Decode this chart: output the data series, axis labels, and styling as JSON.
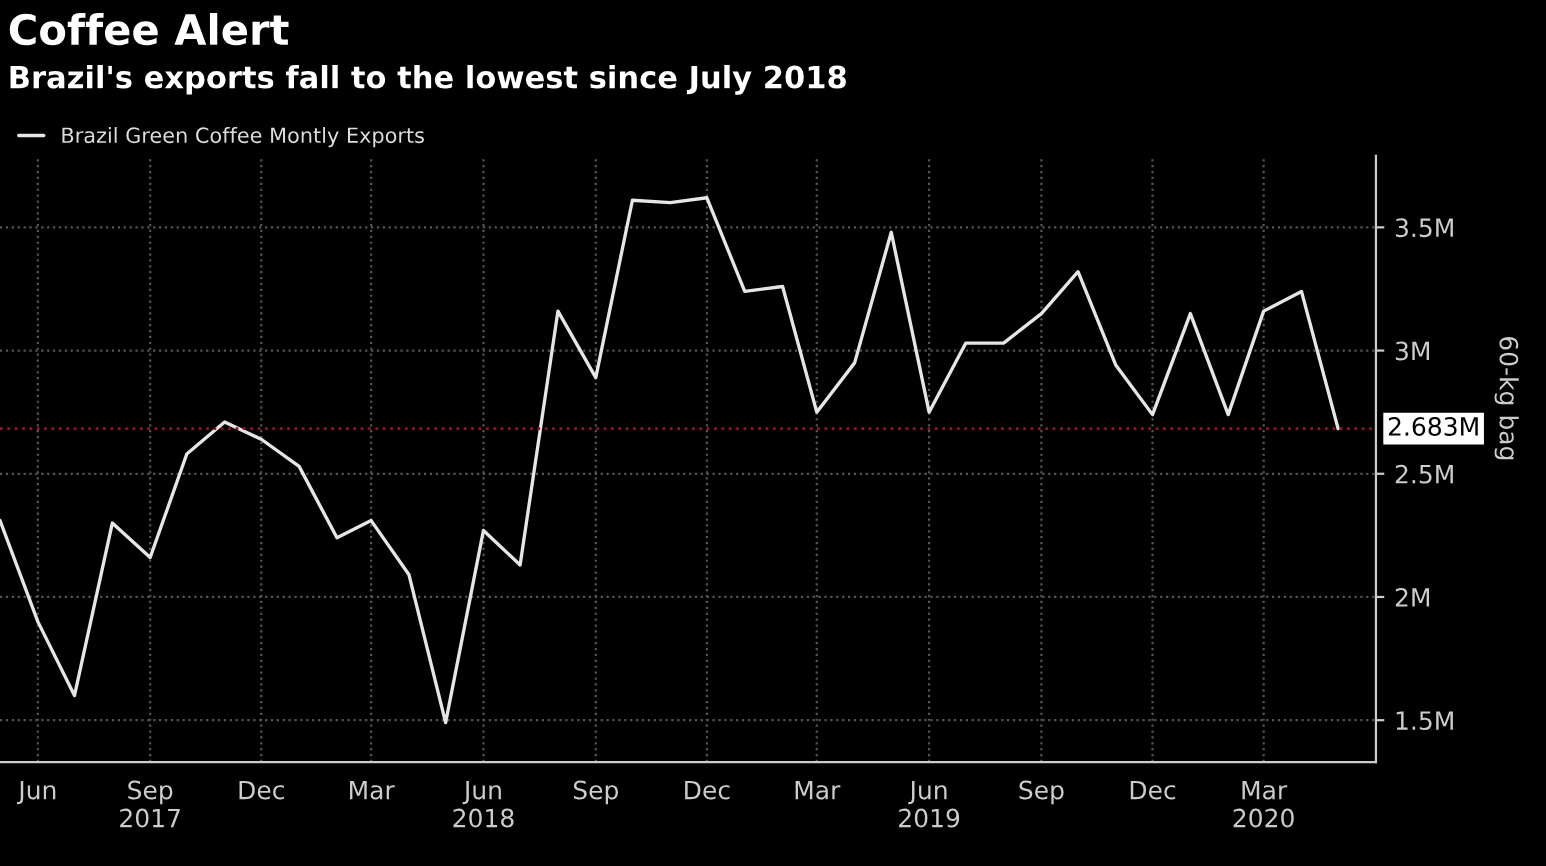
{
  "chart_data": {
    "type": "line",
    "title": "Coffee Alert",
    "subtitle": "Brazil's exports fall to the lowest since July 2018",
    "ylabel": "60-kg bag",
    "x": [
      "2017-05",
      "2017-06",
      "2017-07",
      "2017-08",
      "2017-09",
      "2017-10",
      "2017-11",
      "2017-12",
      "2018-01",
      "2018-02",
      "2018-03",
      "2018-04",
      "2018-05",
      "2018-06",
      "2018-07",
      "2018-08",
      "2018-09",
      "2018-10",
      "2018-11",
      "2018-12",
      "2019-01",
      "2019-02",
      "2019-03",
      "2019-04",
      "2019-05",
      "2019-06",
      "2019-07",
      "2019-08",
      "2019-09",
      "2019-10",
      "2019-11",
      "2019-12",
      "2020-01",
      "2020-02",
      "2020-03",
      "2020-04",
      "2020-05"
    ],
    "series": [
      {
        "name": "Brazil Green Coffee Montly Exports",
        "color": "#e6e6e6",
        "values": [
          2.31,
          1.9,
          1.6,
          2.3,
          2.16,
          2.58,
          2.71,
          2.64,
          2.53,
          2.24,
          2.31,
          2.09,
          1.49,
          2.27,
          2.13,
          3.16,
          2.89,
          3.61,
          3.6,
          3.62,
          3.24,
          3.26,
          2.75,
          2.95,
          3.48,
          2.75,
          3.03,
          3.03,
          3.15,
          3.32,
          2.94,
          2.74,
          3.15,
          2.74,
          3.16,
          3.24,
          2.683
        ]
      }
    ],
    "xlim": [
      "2017-05",
      "2020-06"
    ],
    "xticks": [
      {
        "value": "2017-06",
        "label": "Jun"
      },
      {
        "value": "2017-09",
        "label": "Sep\n2017"
      },
      {
        "value": "2017-12",
        "label": "Dec"
      },
      {
        "value": "2018-03",
        "label": "Mar"
      },
      {
        "value": "2018-06",
        "label": "Jun\n2018"
      },
      {
        "value": "2018-09",
        "label": "Sep"
      },
      {
        "value": "2018-12",
        "label": "Dec"
      },
      {
        "value": "2019-03",
        "label": "Mar"
      },
      {
        "value": "2019-06",
        "label": "Jun\n2019"
      },
      {
        "value": "2019-09",
        "label": "Sep"
      },
      {
        "value": "2019-12",
        "label": "Dec"
      },
      {
        "value": "2020-03",
        "label": "Mar\n2020"
      }
    ],
    "ylim": [
      1.33,
      3.79
    ],
    "yticks": [
      {
        "value": 1.5,
        "label": "1.5M"
      },
      {
        "value": 2,
        "label": "2M"
      },
      {
        "value": 2.5,
        "label": "2.5M"
      },
      {
        "value": 3,
        "label": "3M"
      },
      {
        "value": 3.5,
        "label": "3.5M"
      }
    ],
    "ref_lines": [
      {
        "axis": "y",
        "value": 2.683,
        "label": "2.683M",
        "color": "#8b1a1a",
        "line_style": "dotted"
      }
    ],
    "grid": true,
    "legend": "top left",
    "line_style": "solid",
    "marker": "none"
  }
}
